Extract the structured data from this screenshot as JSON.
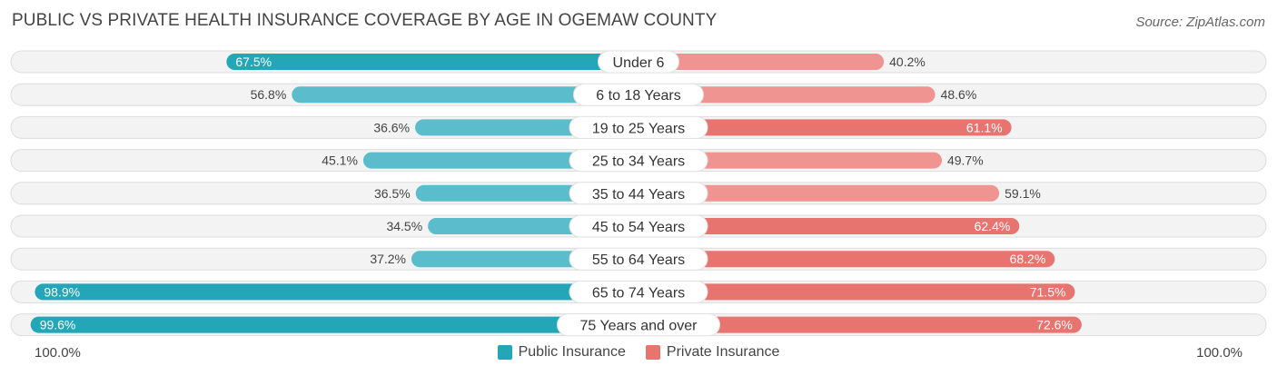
{
  "header": {
    "title": "PUBLIC VS PRIVATE HEALTH INSURANCE COVERAGE BY AGE IN OGEMAW COUNTY",
    "source": "Source: ZipAtlas.com"
  },
  "axis": {
    "left_label": "100.0%",
    "right_label": "100.0%"
  },
  "legend": {
    "public_label": "Public Insurance",
    "private_label": "Private Insurance"
  },
  "colors": {
    "public": "#5bbccb",
    "public_strong": "#23a6b7",
    "private": "#ef9490",
    "private_strong": "#e8746f",
    "row_bg": "#eeeeee"
  },
  "chart_data": {
    "type": "bar",
    "orientation": "horizontal-diverging",
    "title": "PUBLIC VS PRIVATE HEALTH INSURANCE COVERAGE BY AGE IN OGEMAW COUNTY",
    "xlim": [
      -100,
      100
    ],
    "categories": [
      "Under 6",
      "6 to 18 Years",
      "19 to 25 Years",
      "25 to 34 Years",
      "35 to 44 Years",
      "45 to 54 Years",
      "55 to 64 Years",
      "65 to 74 Years",
      "75 Years and over"
    ],
    "series": [
      {
        "name": "Public Insurance",
        "values": [
          67.5,
          56.8,
          36.6,
          45.1,
          36.5,
          34.5,
          37.2,
          98.9,
          99.6
        ],
        "labels": [
          "67.5%",
          "56.8%",
          "36.6%",
          "45.1%",
          "36.5%",
          "34.5%",
          "37.2%",
          "98.9%",
          "99.6%"
        ]
      },
      {
        "name": "Private Insurance",
        "values": [
          40.2,
          48.6,
          61.1,
          49.7,
          59.1,
          62.4,
          68.2,
          71.5,
          72.6
        ],
        "labels": [
          "40.2%",
          "48.6%",
          "61.1%",
          "49.7%",
          "59.1%",
          "62.4%",
          "68.2%",
          "71.5%",
          "72.6%"
        ]
      }
    ]
  }
}
